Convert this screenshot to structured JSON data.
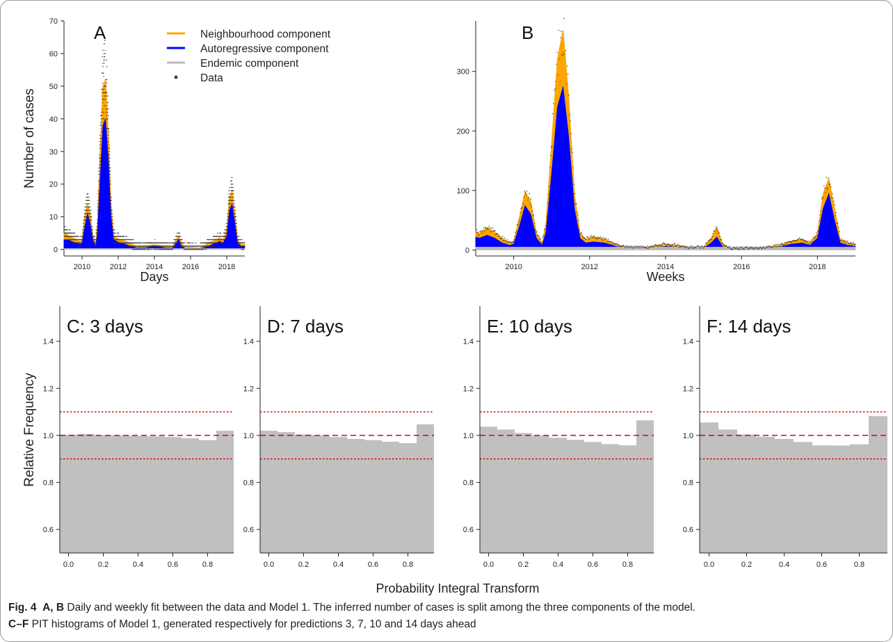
{
  "chart_data": [
    {
      "type": "area",
      "panel_label": "A",
      "xlabel": "Days",
      "ylabel": "Number of cases",
      "xlim": [
        2009.0,
        2019.0
      ],
      "ylim": [
        -2,
        70
      ],
      "x_ticks": [
        "2010",
        "2012",
        "2014",
        "2016",
        "2018"
      ],
      "y_ticks": [
        "0",
        "10",
        "20",
        "30",
        "40",
        "50",
        "60",
        "70"
      ],
      "legend_position": "top-center",
      "legend": [
        {
          "name": "Neighbourhood component",
          "color": "#FFA500",
          "marker": "line"
        },
        {
          "name": "Autoregressive component",
          "color": "#0000FF",
          "marker": "line"
        },
        {
          "name": "Endemic component",
          "color": "#B8B8B8",
          "marker": "line"
        },
        {
          "name": "Data",
          "color": "#444444",
          "marker": "point"
        }
      ],
      "x": [
        2009.0,
        2009.1,
        2009.3,
        2009.5,
        2009.7,
        2009.9,
        2010.0,
        2010.15,
        2010.3,
        2010.45,
        2010.6,
        2010.75,
        2010.85,
        2011.0,
        2011.15,
        2011.3,
        2011.45,
        2011.6,
        2011.75,
        2011.9,
        2012.1,
        2012.4,
        2012.7,
        2013.0,
        2013.5,
        2014.0,
        2014.3,
        2014.6,
        2015.0,
        2015.2,
        2015.35,
        2015.5,
        2015.7,
        2016.0,
        2016.5,
        2017.0,
        2017.3,
        2017.6,
        2017.8,
        2018.0,
        2018.15,
        2018.3,
        2018.45,
        2018.6,
        2018.8,
        2019.0
      ],
      "series": [
        {
          "name": "Autoregressive component",
          "values": [
            3.0,
            3.0,
            2.8,
            2.3,
            2.0,
            1.6,
            2.0,
            7.0,
            11.0,
            8.0,
            3.0,
            1.0,
            5.0,
            22.0,
            38.0,
            40.0,
            28.0,
            10.0,
            3.0,
            2.5,
            2.0,
            1.6,
            1.0,
            0.5,
            0.5,
            1.0,
            0.8,
            0.5,
            0.4,
            2.0,
            3.0,
            1.0,
            0.3,
            0.3,
            0.2,
            1.0,
            1.8,
            2.5,
            2.0,
            4.0,
            12.0,
            14.0,
            8.0,
            2.0,
            1.0,
            1.0
          ]
        },
        {
          "name": "Neighbourhood component",
          "values": [
            5.0,
            5.0,
            4.0,
            3.5,
            3.0,
            2.4,
            3.0,
            10.0,
            14.0,
            11.0,
            4.0,
            2.0,
            8.0,
            30.0,
            50.0,
            52.0,
            36.0,
            14.0,
            4.0,
            3.5,
            3.0,
            2.5,
            1.8,
            1.0,
            1.0,
            1.5,
            1.2,
            1.0,
            0.8,
            3.0,
            4.0,
            2.0,
            0.6,
            0.6,
            0.4,
            2.0,
            2.7,
            3.5,
            3.0,
            6.0,
            16.0,
            18.0,
            11.0,
            3.0,
            1.5,
            1.5
          ]
        },
        {
          "name": "Endemic component",
          "values": [
            0.3,
            0.3,
            0.3,
            0.3,
            0.3,
            0.3,
            0.3,
            0.3,
            0.3,
            0.3,
            0.3,
            0.3,
            0.3,
            0.3,
            0.3,
            0.3,
            0.3,
            0.3,
            0.3,
            0.3,
            0.3,
            0.3,
            0.3,
            0.3,
            0.3,
            0.3,
            0.3,
            0.3,
            0.3,
            0.3,
            0.3,
            0.3,
            0.3,
            0.3,
            0.3,
            0.3,
            0.3,
            0.3,
            0.3,
            0.3,
            0.3,
            0.3,
            0.3,
            0.3,
            0.3,
            0.3
          ]
        }
      ]
    },
    {
      "type": "area",
      "panel_label": "B",
      "xlabel": "Weeks",
      "ylabel": "",
      "xlim": [
        2009.0,
        2019.0
      ],
      "ylim": [
        -10,
        385
      ],
      "x_ticks": [
        "2010",
        "2012",
        "2014",
        "2016",
        "2018"
      ],
      "y_ticks": [
        "0",
        "100",
        "200",
        "300"
      ],
      "x": [
        2009.0,
        2009.1,
        2009.3,
        2009.5,
        2009.7,
        2009.9,
        2010.0,
        2010.15,
        2010.3,
        2010.45,
        2010.6,
        2010.75,
        2010.85,
        2011.0,
        2011.15,
        2011.3,
        2011.45,
        2011.6,
        2011.75,
        2011.9,
        2012.1,
        2012.4,
        2012.7,
        2013.0,
        2013.5,
        2014.0,
        2014.3,
        2014.6,
        2015.0,
        2015.2,
        2015.35,
        2015.5,
        2015.7,
        2016.0,
        2016.5,
        2017.0,
        2017.3,
        2017.6,
        2017.8,
        2018.0,
        2018.15,
        2018.3,
        2018.45,
        2018.6,
        2018.8,
        2019.0
      ],
      "series": [
        {
          "name": "Autoregressive component",
          "values": [
            22.0,
            20.0,
            25.0,
            20.0,
            12.0,
            8.0,
            10.0,
            40.0,
            75.0,
            60.0,
            20.0,
            8.0,
            30.0,
            130.0,
            240.0,
            275.0,
            190.0,
            70.0,
            20.0,
            12.0,
            14.0,
            12.0,
            6.0,
            3.0,
            3.0,
            6.0,
            5.0,
            3.0,
            3.0,
            12.0,
            22.0,
            6.0,
            2.0,
            2.0,
            2.0,
            5.0,
            10.0,
            12.0,
            8.0,
            20.0,
            70.0,
            95.0,
            50.0,
            12.0,
            8.0,
            6.0
          ]
        },
        {
          "name": "Neighbourhood component",
          "values": [
            32.0,
            28.0,
            38.0,
            30.0,
            20.0,
            12.0,
            15.0,
            55.0,
            98.0,
            82.0,
            28.0,
            12.0,
            45.0,
            180.0,
            320.0,
            370.0,
            255.0,
            95.0,
            28.0,
            18.0,
            22.0,
            18.0,
            9.0,
            5.0,
            5.0,
            10.0,
            8.0,
            5.0,
            5.0,
            20.0,
            38.0,
            10.0,
            3.0,
            3.0,
            3.0,
            8.0,
            15.0,
            18.0,
            12.0,
            28.0,
            95.0,
            120.0,
            70.0,
            18.0,
            12.0,
            10.0
          ]
        },
        {
          "name": "Endemic component",
          "values": [
            5.0,
            5.0,
            5.0,
            5.0,
            5.0,
            5.0,
            5.0,
            5.0,
            5.0,
            5.0,
            5.0,
            5.0,
            5.0,
            5.0,
            5.0,
            5.0,
            5.0,
            5.0,
            5.0,
            5.0,
            5.0,
            5.0,
            5.0,
            5.0,
            5.0,
            5.0,
            5.0,
            5.0,
            5.0,
            5.0,
            5.0,
            5.0,
            5.0,
            5.0,
            5.0,
            5.0,
            5.0,
            5.0,
            5.0,
            5.0,
            5.0,
            5.0,
            5.0,
            5.0,
            5.0,
            5.0
          ]
        }
      ]
    },
    {
      "type": "bar",
      "panel_label": "C: 3 days",
      "xlabel": "Probability Integral Transform",
      "ylabel": "Relative Frequency",
      "xlim": [
        -0.05,
        0.95
      ],
      "ylim": [
        0.5,
        1.55
      ],
      "x_ticks": [
        "0.0",
        "0.2",
        "0.4",
        "0.6",
        "0.8"
      ],
      "y_ticks": [
        "0.6",
        "0.8",
        "1.0",
        "1.2",
        "1.4"
      ],
      "bin_width": 0.1,
      "bin_starts": [
        -0.05,
        0.05,
        0.15,
        0.25,
        0.35,
        0.45,
        0.55,
        0.65,
        0.75,
        0.85
      ],
      "values": [
        1.003,
        1.006,
        1.001,
        1.0,
        0.998,
        0.996,
        0.993,
        0.988,
        0.98,
        1.02
      ],
      "reference_lines": [
        {
          "y": 1.0,
          "style": "dashed",
          "color": "#E00000"
        },
        {
          "y": 1.1,
          "style": "dotted",
          "color": "#E00000"
        },
        {
          "y": 0.9,
          "style": "dotted",
          "color": "#E00000"
        }
      ]
    },
    {
      "type": "bar",
      "panel_label": "D: 7 days",
      "xlabel": "",
      "ylabel": "",
      "xlim": [
        -0.05,
        0.95
      ],
      "ylim": [
        0.5,
        1.55
      ],
      "x_ticks": [
        "0.0",
        "0.2",
        "0.4",
        "0.6",
        "0.8"
      ],
      "y_ticks": [
        "0.6",
        "0.8",
        "1.0",
        "1.2",
        "1.4"
      ],
      "bin_width": 0.1,
      "bin_starts": [
        -0.05,
        0.05,
        0.15,
        0.25,
        0.35,
        0.45,
        0.55,
        0.65,
        0.75,
        0.85
      ],
      "values": [
        1.02,
        1.014,
        1.004,
        1.0,
        0.993,
        0.985,
        0.98,
        0.973,
        0.967,
        1.047
      ],
      "reference_lines": [
        {
          "y": 1.0,
          "style": "dashed",
          "color": "#E00000"
        },
        {
          "y": 1.1,
          "style": "dotted",
          "color": "#E00000"
        },
        {
          "y": 0.9,
          "style": "dotted",
          "color": "#E00000"
        }
      ]
    },
    {
      "type": "bar",
      "panel_label": "E: 10 days",
      "xlabel": "",
      "ylabel": "",
      "xlim": [
        -0.05,
        0.95
      ],
      "ylim": [
        0.5,
        1.55
      ],
      "x_ticks": [
        "0.0",
        "0.2",
        "0.4",
        "0.6",
        "0.8"
      ],
      "y_ticks": [
        "0.6",
        "0.8",
        "1.0",
        "1.2",
        "1.4"
      ],
      "bin_width": 0.1,
      "bin_starts": [
        -0.05,
        0.05,
        0.15,
        0.25,
        0.35,
        0.45,
        0.55,
        0.65,
        0.75,
        0.85
      ],
      "values": [
        1.037,
        1.025,
        1.01,
        0.999,
        0.99,
        0.981,
        0.972,
        0.963,
        0.958,
        1.064
      ],
      "reference_lines": [
        {
          "y": 1.0,
          "style": "dashed",
          "color": "#E00000"
        },
        {
          "y": 1.1,
          "style": "dotted",
          "color": "#E00000"
        },
        {
          "y": 0.9,
          "style": "dotted",
          "color": "#E00000"
        }
      ]
    },
    {
      "type": "bar",
      "panel_label": "F: 14 days",
      "xlabel": "",
      "ylabel": "",
      "xlim": [
        -0.05,
        0.95
      ],
      "ylim": [
        0.5,
        1.55
      ],
      "x_ticks": [
        "0.0",
        "0.2",
        "0.4",
        "0.6",
        "0.8"
      ],
      "y_ticks": [
        "0.6",
        "0.8",
        "1.0",
        "1.2",
        "1.4"
      ],
      "bin_width": 0.1,
      "bin_starts": [
        -0.05,
        0.05,
        0.15,
        0.25,
        0.35,
        0.45,
        0.55,
        0.65,
        0.75,
        0.85
      ],
      "values": [
        1.055,
        1.025,
        1.004,
        0.994,
        0.985,
        0.972,
        0.958,
        0.957,
        0.962,
        1.082
      ],
      "reference_lines": [
        {
          "y": 1.0,
          "style": "dashed",
          "color": "#E00000"
        },
        {
          "y": 1.1,
          "style": "dotted",
          "color": "#E00000"
        },
        {
          "y": 0.9,
          "style": "dotted",
          "color": "#E00000"
        }
      ]
    }
  ],
  "caption": {
    "label_1": "Fig. 4",
    "bold_1": "A, B",
    "text_1": " Daily and weekly fit between the data and Model 1. The inferred number of cases is split among the three components of the model.",
    "bold_2": "C–F",
    "text_2": " PIT histograms of Model 1, generated respectively for predictions 3, 7, 10 and 14 days ahead"
  }
}
